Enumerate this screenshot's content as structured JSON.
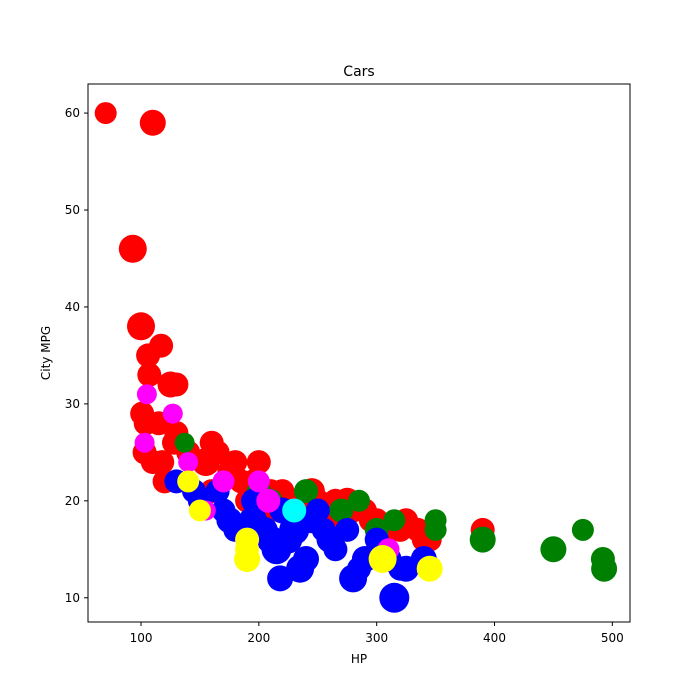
{
  "chart_data": {
    "type": "scatter",
    "title": "Cars",
    "xlabel": "HP",
    "ylabel": "City MPG",
    "xlim": [
      55,
      515
    ],
    "ylim": [
      7.5,
      63
    ],
    "xticks": [
      100,
      200,
      300,
      400,
      500
    ],
    "yticks": [
      10,
      20,
      30,
      40,
      50,
      60
    ],
    "grid": false,
    "legend": "none",
    "colors": {
      "red": "#ff0000",
      "green": "#008000",
      "blue": "#0000ff",
      "magenta": "#ff00ff",
      "yellow": "#ffff00",
      "cyan": "#00ffff"
    },
    "series": [
      {
        "color_key": "red",
        "points": [
          [
            70,
            60,
            11
          ],
          [
            110,
            59,
            13
          ],
          [
            93,
            46,
            14
          ],
          [
            100,
            38,
            14
          ],
          [
            117,
            36,
            12
          ],
          [
            106,
            35,
            12
          ],
          [
            107,
            33,
            12
          ],
          [
            125,
            32,
            13
          ],
          [
            130,
            32,
            12
          ],
          [
            101,
            29,
            12
          ],
          [
            104,
            28,
            12
          ],
          [
            115,
            28,
            12
          ],
          [
            130,
            27,
            12
          ],
          [
            128,
            26,
            12
          ],
          [
            140,
            25,
            12
          ],
          [
            103,
            25,
            12
          ],
          [
            110,
            24,
            12
          ],
          [
            118,
            24,
            12
          ],
          [
            120,
            22,
            12
          ],
          [
            155,
            24,
            14
          ],
          [
            160,
            26,
            12
          ],
          [
            165,
            25,
            12
          ],
          [
            180,
            24,
            12
          ],
          [
            200,
            24,
            12
          ],
          [
            175,
            23,
            12
          ],
          [
            185,
            22,
            12
          ],
          [
            195,
            22,
            12
          ],
          [
            210,
            21,
            12
          ],
          [
            220,
            21,
            12
          ],
          [
            230,
            20,
            12
          ],
          [
            245,
            21,
            13
          ],
          [
            250,
            20,
            12
          ],
          [
            265,
            20,
            12
          ],
          [
            275,
            20,
            13
          ],
          [
            280,
            19,
            12
          ],
          [
            290,
            19,
            12
          ],
          [
            300,
            18,
            12
          ],
          [
            325,
            18,
            12
          ],
          [
            335,
            17,
            12
          ],
          [
            340,
            16,
            12
          ],
          [
            345,
            16,
            12
          ],
          [
            390,
            17,
            12
          ],
          [
            150,
            20,
            12
          ],
          [
            160,
            21,
            12
          ],
          [
            190,
            20,
            12
          ],
          [
            200,
            19,
            13
          ],
          [
            210,
            19,
            12
          ],
          [
            240,
            20,
            12
          ],
          [
            255,
            18,
            12
          ],
          [
            270,
            18,
            13
          ],
          [
            295,
            18,
            12
          ],
          [
            310,
            17,
            13
          ],
          [
            320,
            17,
            12
          ]
        ]
      },
      {
        "color_key": "green",
        "points": [
          [
            137,
            26,
            10
          ],
          [
            200,
            21,
            12
          ],
          [
            210,
            20,
            12
          ],
          [
            240,
            21,
            12
          ],
          [
            270,
            19,
            12
          ],
          [
            285,
            20,
            11
          ],
          [
            300,
            17,
            12
          ],
          [
            315,
            18,
            11
          ],
          [
            350,
            18,
            11
          ],
          [
            350,
            17,
            11
          ],
          [
            390,
            16,
            13
          ],
          [
            450,
            15,
            13
          ],
          [
            475,
            17,
            11
          ],
          [
            492,
            14,
            12
          ],
          [
            493,
            13,
            13
          ]
        ]
      },
      {
        "color_key": "blue",
        "points": [
          [
            130,
            22,
            12
          ],
          [
            145,
            21,
            12
          ],
          [
            150,
            20,
            12
          ],
          [
            165,
            21,
            12
          ],
          [
            170,
            19,
            12
          ],
          [
            175,
            18,
            13
          ],
          [
            180,
            17,
            12
          ],
          [
            195,
            18,
            14
          ],
          [
            205,
            17,
            13
          ],
          [
            210,
            16,
            14
          ],
          [
            215,
            15,
            15
          ],
          [
            218,
            12,
            13
          ],
          [
            225,
            16,
            14
          ],
          [
            230,
            17,
            15
          ],
          [
            235,
            13,
            14
          ],
          [
            240,
            14,
            13
          ],
          [
            245,
            18,
            13
          ],
          [
            250,
            19,
            12
          ],
          [
            260,
            16,
            13
          ],
          [
            265,
            15,
            12
          ],
          [
            280,
            12,
            14
          ],
          [
            285,
            13,
            12
          ],
          [
            290,
            14,
            13
          ],
          [
            300,
            16,
            12
          ],
          [
            305,
            15,
            12
          ],
          [
            310,
            14,
            13
          ],
          [
            315,
            10,
            15
          ],
          [
            320,
            13,
            12
          ],
          [
            325,
            13,
            13
          ],
          [
            340,
            14,
            13
          ],
          [
            195,
            20,
            12
          ],
          [
            220,
            19,
            13
          ],
          [
            230,
            18,
            13
          ],
          [
            255,
            17,
            12
          ],
          [
            275,
            17,
            12
          ]
        ]
      },
      {
        "color_key": "magenta",
        "points": [
          [
            105,
            31,
            10
          ],
          [
            103,
            26,
            10
          ],
          [
            127,
            29,
            10
          ],
          [
            140,
            24,
            10
          ],
          [
            155,
            19,
            10
          ],
          [
            170,
            22,
            11
          ],
          [
            200,
            22,
            11
          ],
          [
            208,
            20,
            12
          ],
          [
            310,
            15,
            11
          ]
        ]
      },
      {
        "color_key": "yellow",
        "points": [
          [
            140,
            22,
            11
          ],
          [
            150,
            19,
            11
          ],
          [
            190,
            14,
            13
          ],
          [
            190,
            16,
            12
          ],
          [
            190,
            15,
            12
          ],
          [
            305,
            14,
            14
          ],
          [
            345,
            13,
            13
          ]
        ]
      },
      {
        "color_key": "cyan",
        "points": [
          [
            230,
            19,
            12
          ]
        ]
      }
    ]
  }
}
